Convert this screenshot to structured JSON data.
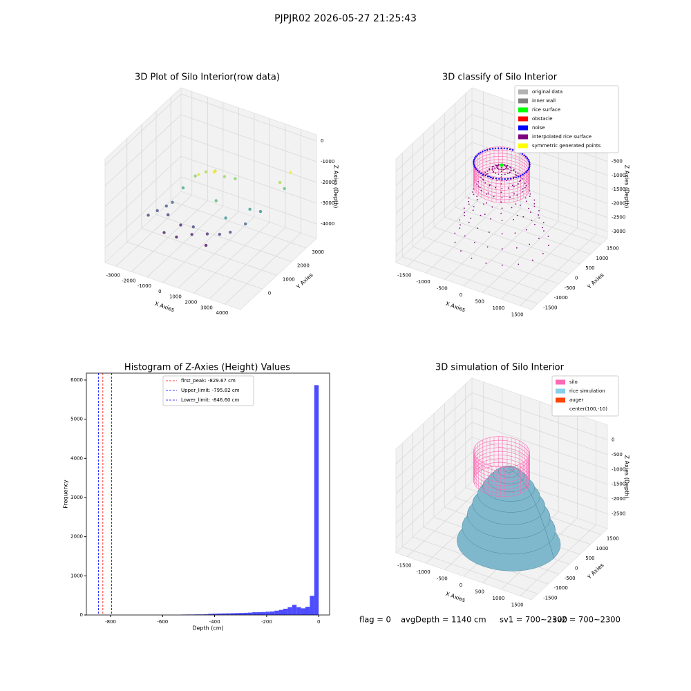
{
  "page": {
    "title": "PJPJR02 2026-05-27 21:25:43",
    "footer": [
      "flag = 0",
      "avgDepth = 1140 cm",
      "sv1 = 700~2300",
      "sv2 = 700~2300"
    ]
  },
  "chart_data": [
    {
      "type": "scatter3d",
      "title": "3D Plot of Silo Interior(row data)",
      "xlabel": "X Axies",
      "ylabel": "Y Axies",
      "zlabel": "Z Axies (Depth)",
      "xlim": [
        -3700,
        5000
      ],
      "ylim": [
        -1500,
        3700
      ],
      "zlim": [
        -4700,
        300
      ],
      "xticks": [
        -3000,
        -2000,
        -1000,
        0,
        1000,
        2000,
        3000,
        4000
      ],
      "yticks": [
        0,
        1000,
        2000,
        3000
      ],
      "zticks": [
        0,
        -1000,
        -2000,
        -3000,
        -4000
      ],
      "colormap": "viridis",
      "x": [
        -2800,
        -2500,
        -2200,
        -2000,
        -1500,
        -1000,
        -500,
        0,
        500,
        1000,
        -1500,
        -800,
        0,
        800,
        1500,
        2000,
        2500,
        3000,
        3500,
        3800,
        3600,
        -2000,
        -1000,
        0,
        1000,
        -500,
        200,
        900,
        1800,
        2600
      ],
      "y": [
        500,
        800,
        1100,
        1300,
        1500,
        1800,
        2000,
        2100,
        2200,
        2400,
        200,
        300,
        500,
        700,
        800,
        1000,
        1500,
        2000,
        2800,
        3200,
        3000,
        1000,
        800,
        600,
        400,
        1500,
        1800,
        1200,
        900,
        1700
      ],
      "z": [
        -3500,
        -3400,
        -3300,
        -3200,
        -2500,
        -2000,
        -1800,
        -1700,
        -1900,
        -2000,
        -3800,
        -3900,
        -3700,
        -3600,
        -3500,
        -3400,
        -3200,
        -2800,
        -1800,
        -1500,
        -2200,
        -3600,
        -3700,
        -3400,
        -3900,
        -1600,
        -1500,
        -2300,
        -2700,
        -2600
      ]
    },
    {
      "type": "wireframe3d",
      "title": "3D classify of Silo Interior",
      "xlabel": "X Axies",
      "ylabel": "Y Axies",
      "zlabel": "Z Axies (Depth)",
      "xlim": [
        -1800,
        1800
      ],
      "ylim": [
        -1800,
        1800
      ],
      "zlim": [
        -3250,
        450
      ],
      "xticks": [
        -1500,
        -1000,
        -500,
        0,
        500,
        1000,
        1500
      ],
      "yticks": [
        -1500,
        -1000,
        -500,
        0,
        500,
        1000,
        1500
      ],
      "zticks": [
        0,
        -500,
        -1000,
        -1500,
        -2000,
        -2500,
        -3000
      ],
      "legend": [
        {
          "name": "original data",
          "color": "#b3b3b3"
        },
        {
          "name": "inner wall",
          "color": "#808080"
        },
        {
          "name": "rice surface",
          "color": "#00ff00"
        },
        {
          "name": "obstacle",
          "color": "#ff0000"
        },
        {
          "name": "noise",
          "color": "#0000ff"
        },
        {
          "name": "interpolated rice surface",
          "color": "#800080"
        },
        {
          "name": "symmetric generated points",
          "color": "#ffff00"
        }
      ]
    },
    {
      "type": "histogram",
      "title": "Histogram of Z-Axies (Height) Values",
      "xlabel": "Depth (cm)",
      "ylabel": "Frequency",
      "color": "#4d4dff",
      "xlim": [
        -893,
        42
      ],
      "ylim": [
        0,
        6176
      ],
      "xticks": [
        -800,
        -600,
        -400,
        -200,
        0
      ],
      "yticks": [
        0,
        1000,
        2000,
        3000,
        4000,
        5000,
        6000
      ],
      "bins": [
        -850,
        -833,
        -816,
        -799,
        -782,
        -765,
        -748,
        -731,
        -714,
        -697,
        -680,
        -663,
        -646,
        -629,
        -612,
        -595,
        -578,
        -561,
        -544,
        -527,
        -510,
        -493,
        -476,
        -459,
        -442,
        -425,
        -408,
        -391,
        -374,
        -357,
        -340,
        -323,
        -306,
        -289,
        -272,
        -255,
        -238,
        -221,
        -204,
        -187,
        -170,
        -153,
        -136,
        -119,
        -102,
        -85,
        -68,
        -51,
        -34,
        -17,
        0
      ],
      "counts": [
        0,
        0,
        0,
        0,
        0,
        0,
        0,
        0,
        0,
        0,
        0,
        0,
        0,
        0,
        0,
        0,
        0,
        0,
        0,
        10,
        12,
        12,
        15,
        15,
        18,
        30,
        35,
        38,
        40,
        42,
        45,
        48,
        50,
        55,
        60,
        70,
        72,
        75,
        85,
        90,
        110,
        130,
        160,
        200,
        260,
        200,
        170,
        210,
        490,
        5870
      ],
      "lines": [
        {
          "label": "first_peak: -829.67 cm",
          "value": -829.67,
          "color": "#ff0000"
        },
        {
          "label": "Upper_limit: -795.82 cm",
          "value": -795.82,
          "color": "#0000ff"
        },
        {
          "label": "Lower_limit: -846.60 cm",
          "value": -846.6,
          "color": "#0000ff"
        }
      ]
    },
    {
      "type": "surface3d",
      "title": "3D simulation of Silo Interior",
      "xlabel": "X Axies",
      "ylabel": "Y Axies",
      "zlabel": "Z Axies (Depth)",
      "xlim": [
        -1800,
        1800
      ],
      "ylim": [
        -1800,
        1800
      ],
      "zlim": [
        -3000,
        500
      ],
      "xticks": [
        -1500,
        -1000,
        -500,
        0,
        500,
        1000,
        1500
      ],
      "yticks": [
        -1500,
        -1000,
        -500,
        0,
        500,
        1000,
        1500
      ],
      "zticks": [
        0,
        -500,
        -1000,
        -1500,
        -2000,
        -2500
      ],
      "legend": [
        {
          "name": "silo",
          "color": "#ff69b4"
        },
        {
          "name": "rice simulation",
          "color": "#87ceeb"
        },
        {
          "name": "auger",
          "color": "#ff4500"
        },
        {
          "name": "center(100,-10)",
          "color": "#ffffff"
        }
      ]
    }
  ]
}
